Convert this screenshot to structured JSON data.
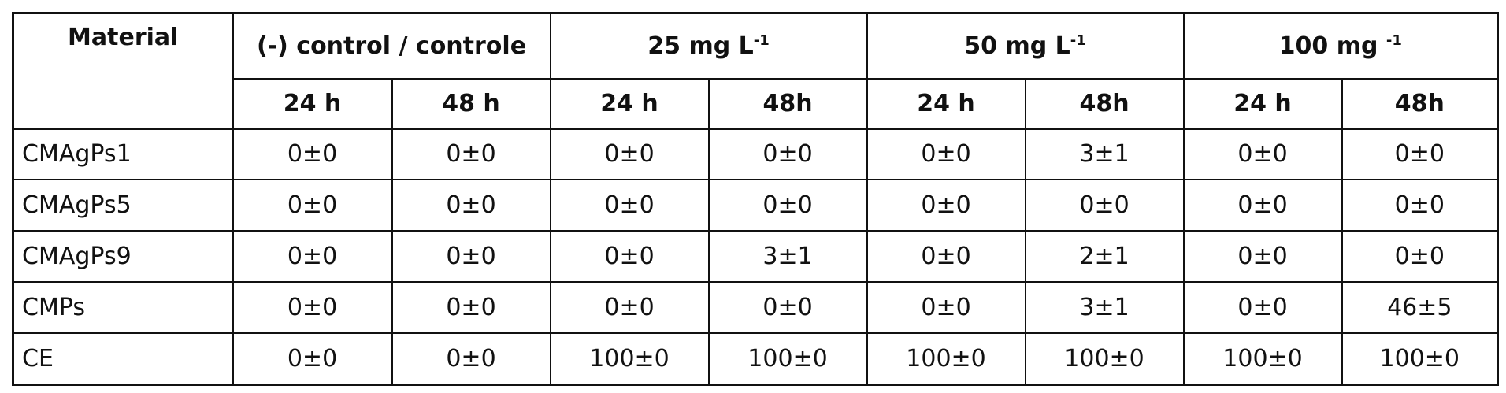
{
  "table": {
    "corner": "Material",
    "groups": [
      {
        "label": "(-) control / controle"
      },
      {
        "label": "25 mg L",
        "sup": "-1"
      },
      {
        "label": "50 mg L",
        "sup": "-1"
      },
      {
        "label": "100 mg ",
        "sup": "-1"
      }
    ],
    "subheaders": [
      "24 h",
      "48 h",
      "24 h",
      "48h",
      "24 h",
      "48h",
      "24 h",
      "48h"
    ],
    "rows": [
      [
        "CMAgPs1",
        "0±0",
        "0±0",
        "0±0",
        "0±0",
        "0±0",
        "3±1",
        "0±0",
        "0±0"
      ],
      [
        "CMAgPs5",
        "0±0",
        "0±0",
        "0±0",
        "0±0",
        "0±0",
        "0±0",
        "0±0",
        "0±0"
      ],
      [
        "CMAgPs9",
        "0±0",
        "0±0",
        "0±0",
        "3±1",
        "0±0",
        "2±1",
        "0±0",
        "0±0"
      ],
      [
        "CMPs",
        "0±0",
        "0±0",
        "0±0",
        "0±0",
        "0±0",
        "3±1",
        "0±0",
        "46±5"
      ],
      [
        "CE",
        "0±0",
        "0±0",
        "100±0",
        "100±0",
        "100±0",
        "100±0",
        "100±0",
        "100±0"
      ]
    ]
  }
}
